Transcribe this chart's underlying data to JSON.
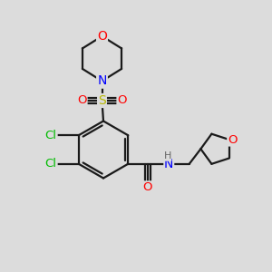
{
  "background_color": "#dcdcdc",
  "bond_color": "#1a1a1a",
  "atom_colors": {
    "O": "#ff0000",
    "N": "#0000ff",
    "S": "#b8b800",
    "Cl": "#00bb00",
    "C": "#1a1a1a",
    "H": "#666666"
  },
  "figsize": [
    3.0,
    3.0
  ],
  "dpi": 100
}
